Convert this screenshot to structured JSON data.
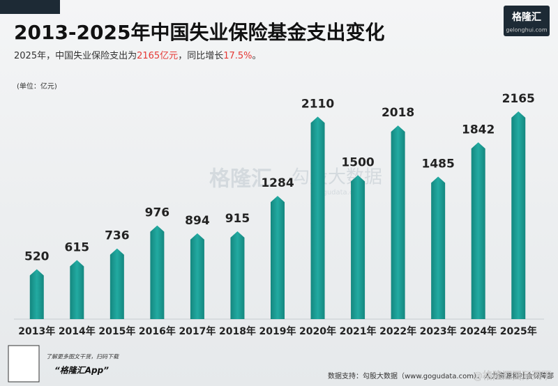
{
  "chart_data": {
    "type": "bar",
    "title": "2013-2025年中国失业保险基金支出变化",
    "subtitle_parts": [
      "2025年，中国失业保险支出为",
      "2165亿元",
      "，同比增长",
      "17.5%",
      "。"
    ],
    "unit": "(单位：亿元)",
    "categories": [
      "2013年",
      "2014年",
      "2015年",
      "2016年",
      "2017年",
      "2018年",
      "2019年",
      "2020年",
      "2021年",
      "2022年",
      "2023年",
      "2024年",
      "2025年"
    ],
    "values": [
      520,
      615,
      736,
      976,
      894,
      915,
      1284,
      2110,
      1500,
      2018,
      1485,
      1842,
      2165
    ],
    "color": "#1a9e96",
    "ylim": [
      0,
      2200
    ]
  },
  "logo": {
    "name": "格隆汇",
    "site": "gelonghui.com"
  },
  "watermark": {
    "brand": "格隆汇",
    "data": "勾股大数据",
    "data_site": "gogudata.com"
  },
  "footer": {
    "qr_note": "了解更多图文干货，扫码下载",
    "app": "“格隆汇App”",
    "source": "数据支持：勾股大数据（www.gogudata.com）、人力资源和社会保障部",
    "weibo": "@格隆汇国际天下"
  }
}
